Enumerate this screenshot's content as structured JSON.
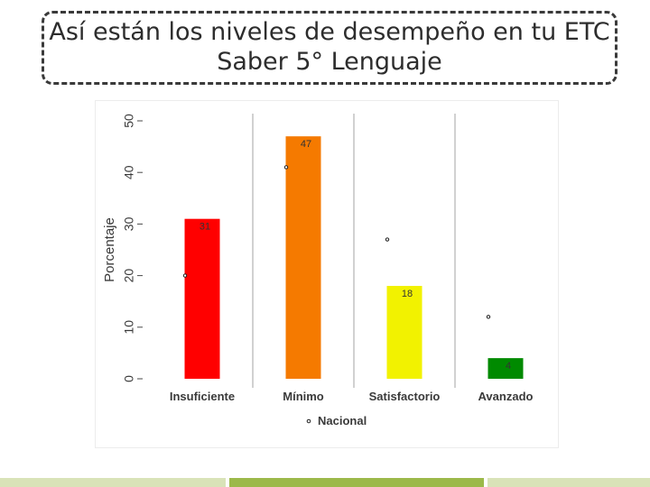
{
  "slide": {
    "title_line1": "Así están los niveles de desempeño en tu ETC",
    "title_line2": "Saber 5° Lenguaje"
  },
  "chart_data": {
    "type": "bar",
    "title": "",
    "xlabel": "",
    "ylabel": "Porcentaje",
    "ylim": [
      0,
      50
    ],
    "yticks": [
      0,
      10,
      20,
      30,
      40,
      50
    ],
    "grid": true,
    "legend_position": "bottom",
    "categories": [
      "Insuficiente",
      "Mínimo",
      "Satisfactorio",
      "Avanzado"
    ],
    "series": [
      {
        "name": "ETC",
        "values": [
          31,
          47,
          18,
          4
        ],
        "colors": [
          "#ff0000",
          "#f57a00",
          "#f2f200",
          "#008a00"
        ]
      },
      {
        "name": "Nacional",
        "marker": "point",
        "values": [
          20,
          41,
          27,
          12
        ]
      }
    ],
    "legend": [
      {
        "label": "Nacional",
        "marker": "point"
      }
    ]
  }
}
